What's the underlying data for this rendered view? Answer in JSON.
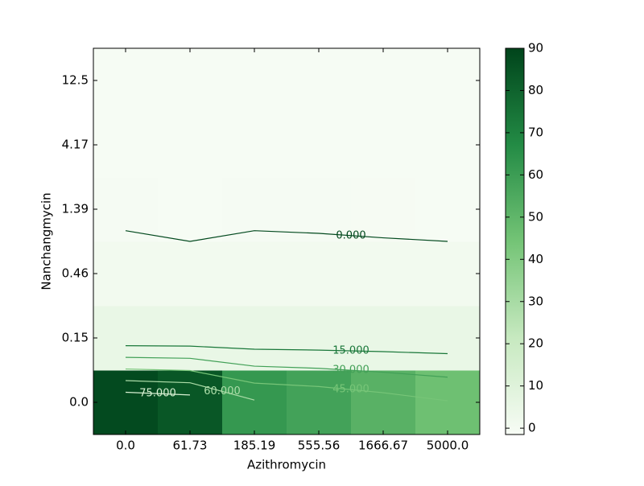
{
  "chart_data": {
    "type": "heatmap",
    "xlabel": "Azithromycin",
    "ylabel": "Nanchangmycin",
    "x": [
      "0.0",
      "61.73",
      "185.19",
      "555.56",
      "1666.67",
      "5000.0"
    ],
    "y": [
      "0.0",
      "0.15",
      "0.46",
      "1.39",
      "4.17",
      "12.5"
    ],
    "z": [
      [
        88,
        84,
        62,
        58,
        52,
        46
      ],
      [
        5,
        5,
        5,
        5,
        5,
        5
      ],
      [
        1,
        1,
        1,
        1,
        1,
        1
      ],
      [
        -0.5,
        -1,
        -0.5,
        -0.6,
        -0.8,
        -1
      ],
      [
        -1,
        -1,
        -1,
        -1,
        -1,
        -1
      ],
      [
        -1,
        -1,
        -1,
        -1,
        -1,
        -1
      ]
    ],
    "clim": [
      -1.5,
      90
    ],
    "colorbar_ticks": [
      0,
      10,
      20,
      30,
      40,
      50,
      60,
      70,
      80,
      90
    ],
    "contour_levels": [
      {
        "value": 0,
        "label": "0.000"
      },
      {
        "value": 15,
        "label": "15.000"
      },
      {
        "value": 30,
        "label": "30.000"
      },
      {
        "value": 45,
        "label": "45.000"
      },
      {
        "value": 60,
        "label": "60.000"
      },
      {
        "value": 75,
        "label": "75.000"
      }
    ],
    "colormap": [
      "#f7fcf5",
      "#c7e9c0",
      "#74c476",
      "#238b45",
      "#00441b"
    ]
  }
}
